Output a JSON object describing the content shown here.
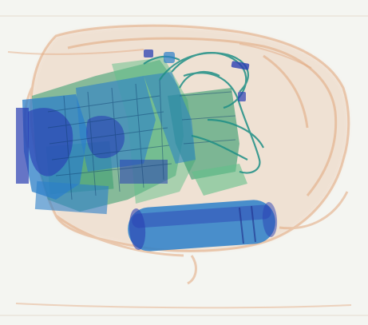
{
  "image": {
    "kind": "xray-baggage-scan",
    "palette": {
      "background": "#f4f5f1",
      "organic": "#e2a77d",
      "organic_dark": "#c98a60",
      "mixed": "#2f9a6a",
      "mixed_light": "#62c08a",
      "inorganic": "#2c7fc9",
      "dense": "#2a3fb3",
      "wire": "#1f8f86"
    }
  }
}
